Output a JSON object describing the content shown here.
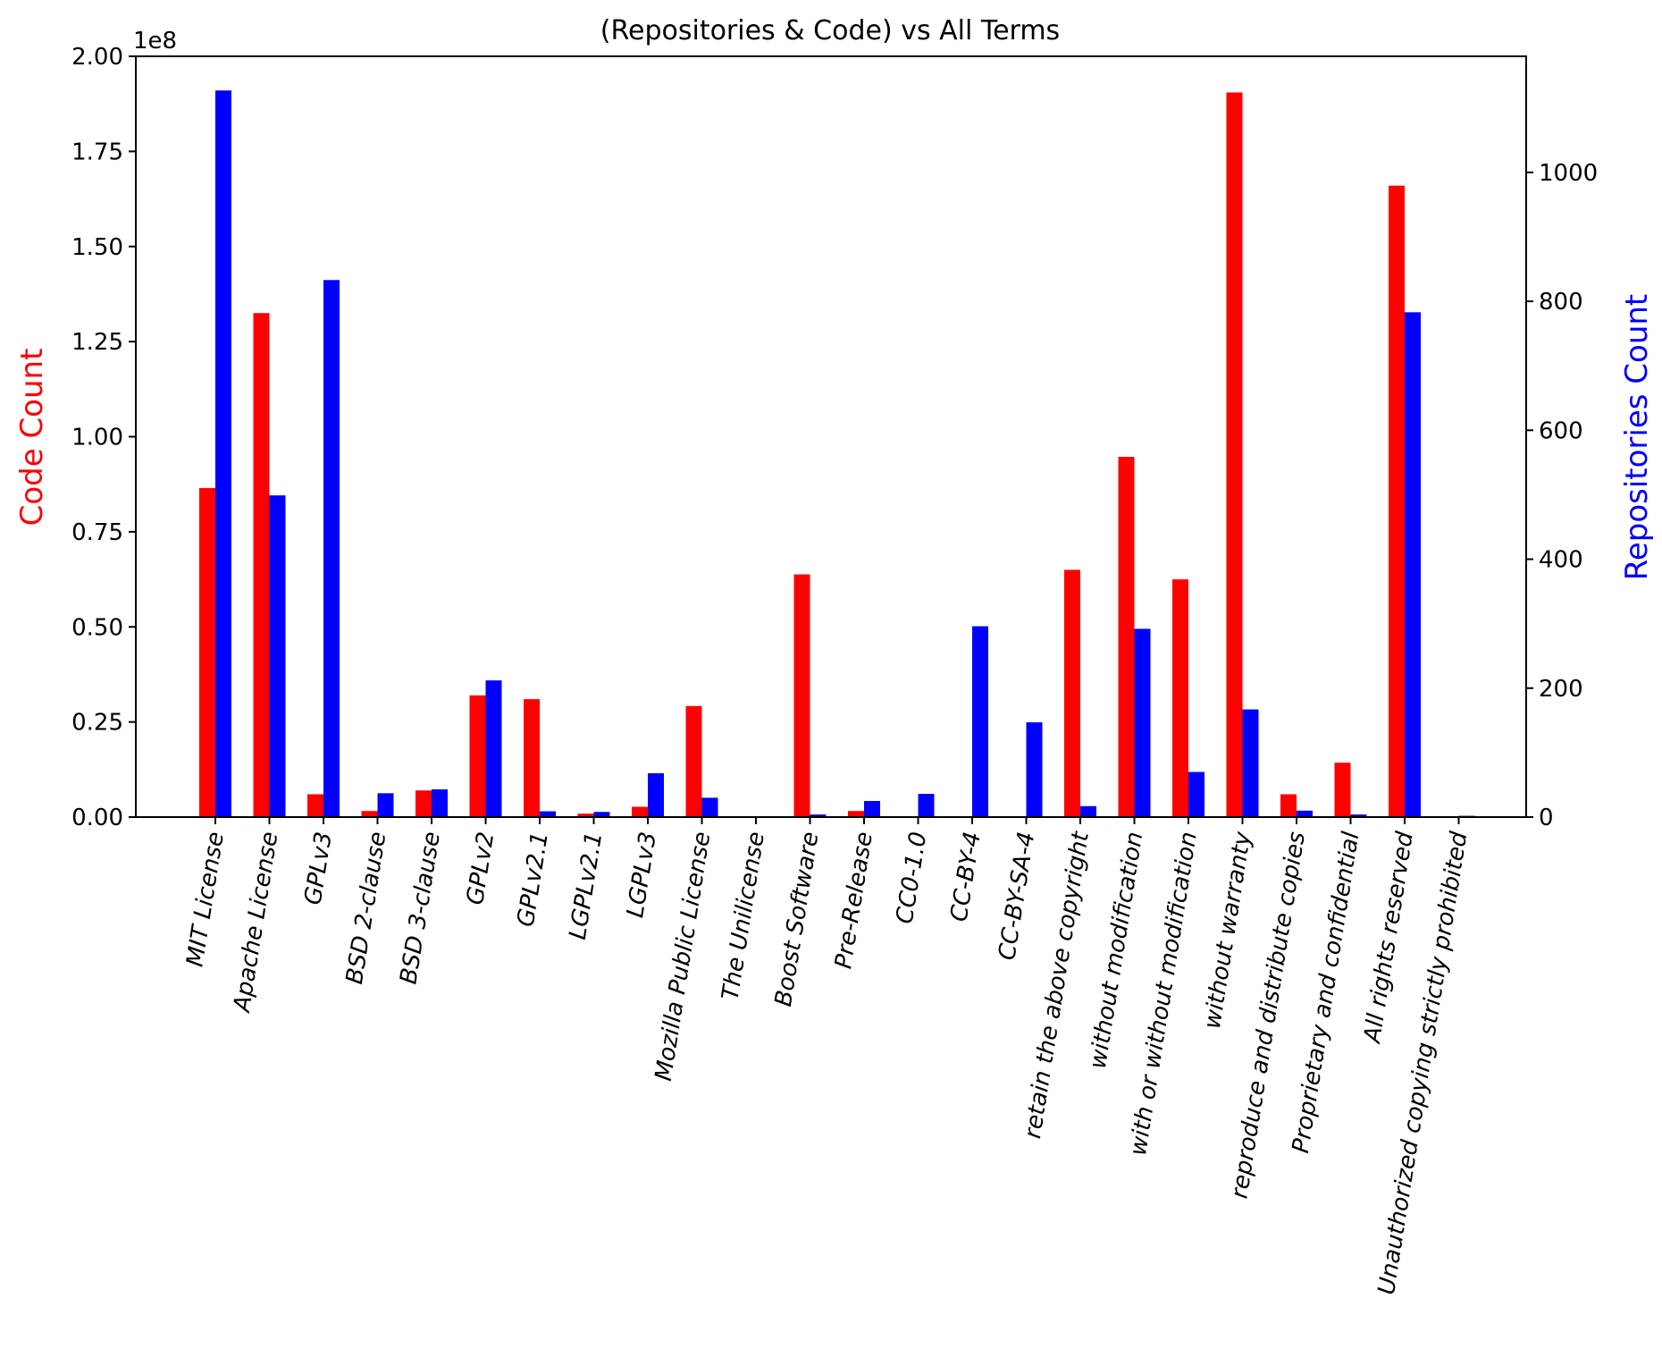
{
  "chart_data": {
    "type": "bar",
    "title": "(Repositories & Code) vs All Terms",
    "xlabel": "",
    "left_axis": {
      "label": "Code Count",
      "color": "#ff0000",
      "offset_text": "1e8",
      "ylim": [
        0,
        2.0
      ],
      "ticks": [
        "0.00",
        "0.25",
        "0.50",
        "0.75",
        "1.00",
        "1.25",
        "1.50",
        "1.75",
        "2.00"
      ]
    },
    "right_axis": {
      "label": "Repositories Count",
      "color": "#0000ff",
      "ylim": [
        0,
        1180
      ],
      "ticks": [
        "0",
        "200",
        "400",
        "600",
        "800",
        "1000"
      ]
    },
    "categories": [
      "MIT License",
      "Apache License",
      "GPLv3",
      "BSD 2-clause",
      "BSD 3-clause",
      "GPLv2",
      "GPLv2.1",
      "LGPLv2.1",
      "LGPLv3",
      "Mozilla Public License",
      "The Unilicense",
      "Boost Software",
      "Pre-Release",
      "CC0-1.0",
      "CC-BY-4",
      "CC-BY-SA-4",
      "retain the above copyright",
      "without modification",
      "with or without modification",
      "without warranty",
      "reproduce and distribute copies",
      "Proprietary and confidential",
      "All rights reserved",
      "Unauthorized copying strictly prohibited"
    ],
    "series": [
      {
        "name": "Code Count",
        "axis": "left",
        "color": "#ff0000",
        "values": [
          0.865,
          1.325,
          0.06,
          0.016,
          0.07,
          0.32,
          0.31,
          0.009,
          0.027,
          0.292,
          0,
          0.638,
          0.016,
          0,
          0,
          0,
          0.65,
          0.947,
          0.625,
          1.905,
          0.06,
          0.143,
          1.66,
          0
        ]
      },
      {
        "name": "Repositories Count",
        "axis": "right",
        "color": "#0000ff",
        "values": [
          1127,
          499,
          833,
          37,
          43,
          212,
          9,
          8,
          68,
          30,
          0,
          4,
          25,
          36,
          296,
          147,
          17,
          292,
          70,
          167,
          10,
          4,
          783,
          2
        ]
      }
    ]
  }
}
